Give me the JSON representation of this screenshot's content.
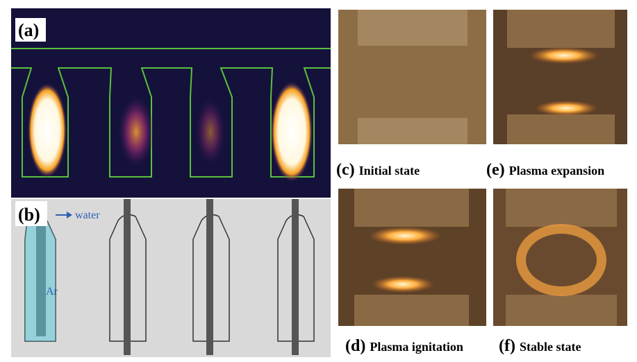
{
  "panels": [
    {
      "label": "(a)"
    },
    {
      "label": "(b)",
      "annotations": [
        "water",
        "Ar"
      ]
    }
  ],
  "photos": [
    {
      "label": "(c)",
      "caption": "Initial state"
    },
    {
      "label": "(e)",
      "caption": "Plasma expansion"
    },
    {
      "label": "(d)",
      "caption": "Plasma ignitation"
    },
    {
      "label": "(f)",
      "caption": "Stable state"
    }
  ]
}
